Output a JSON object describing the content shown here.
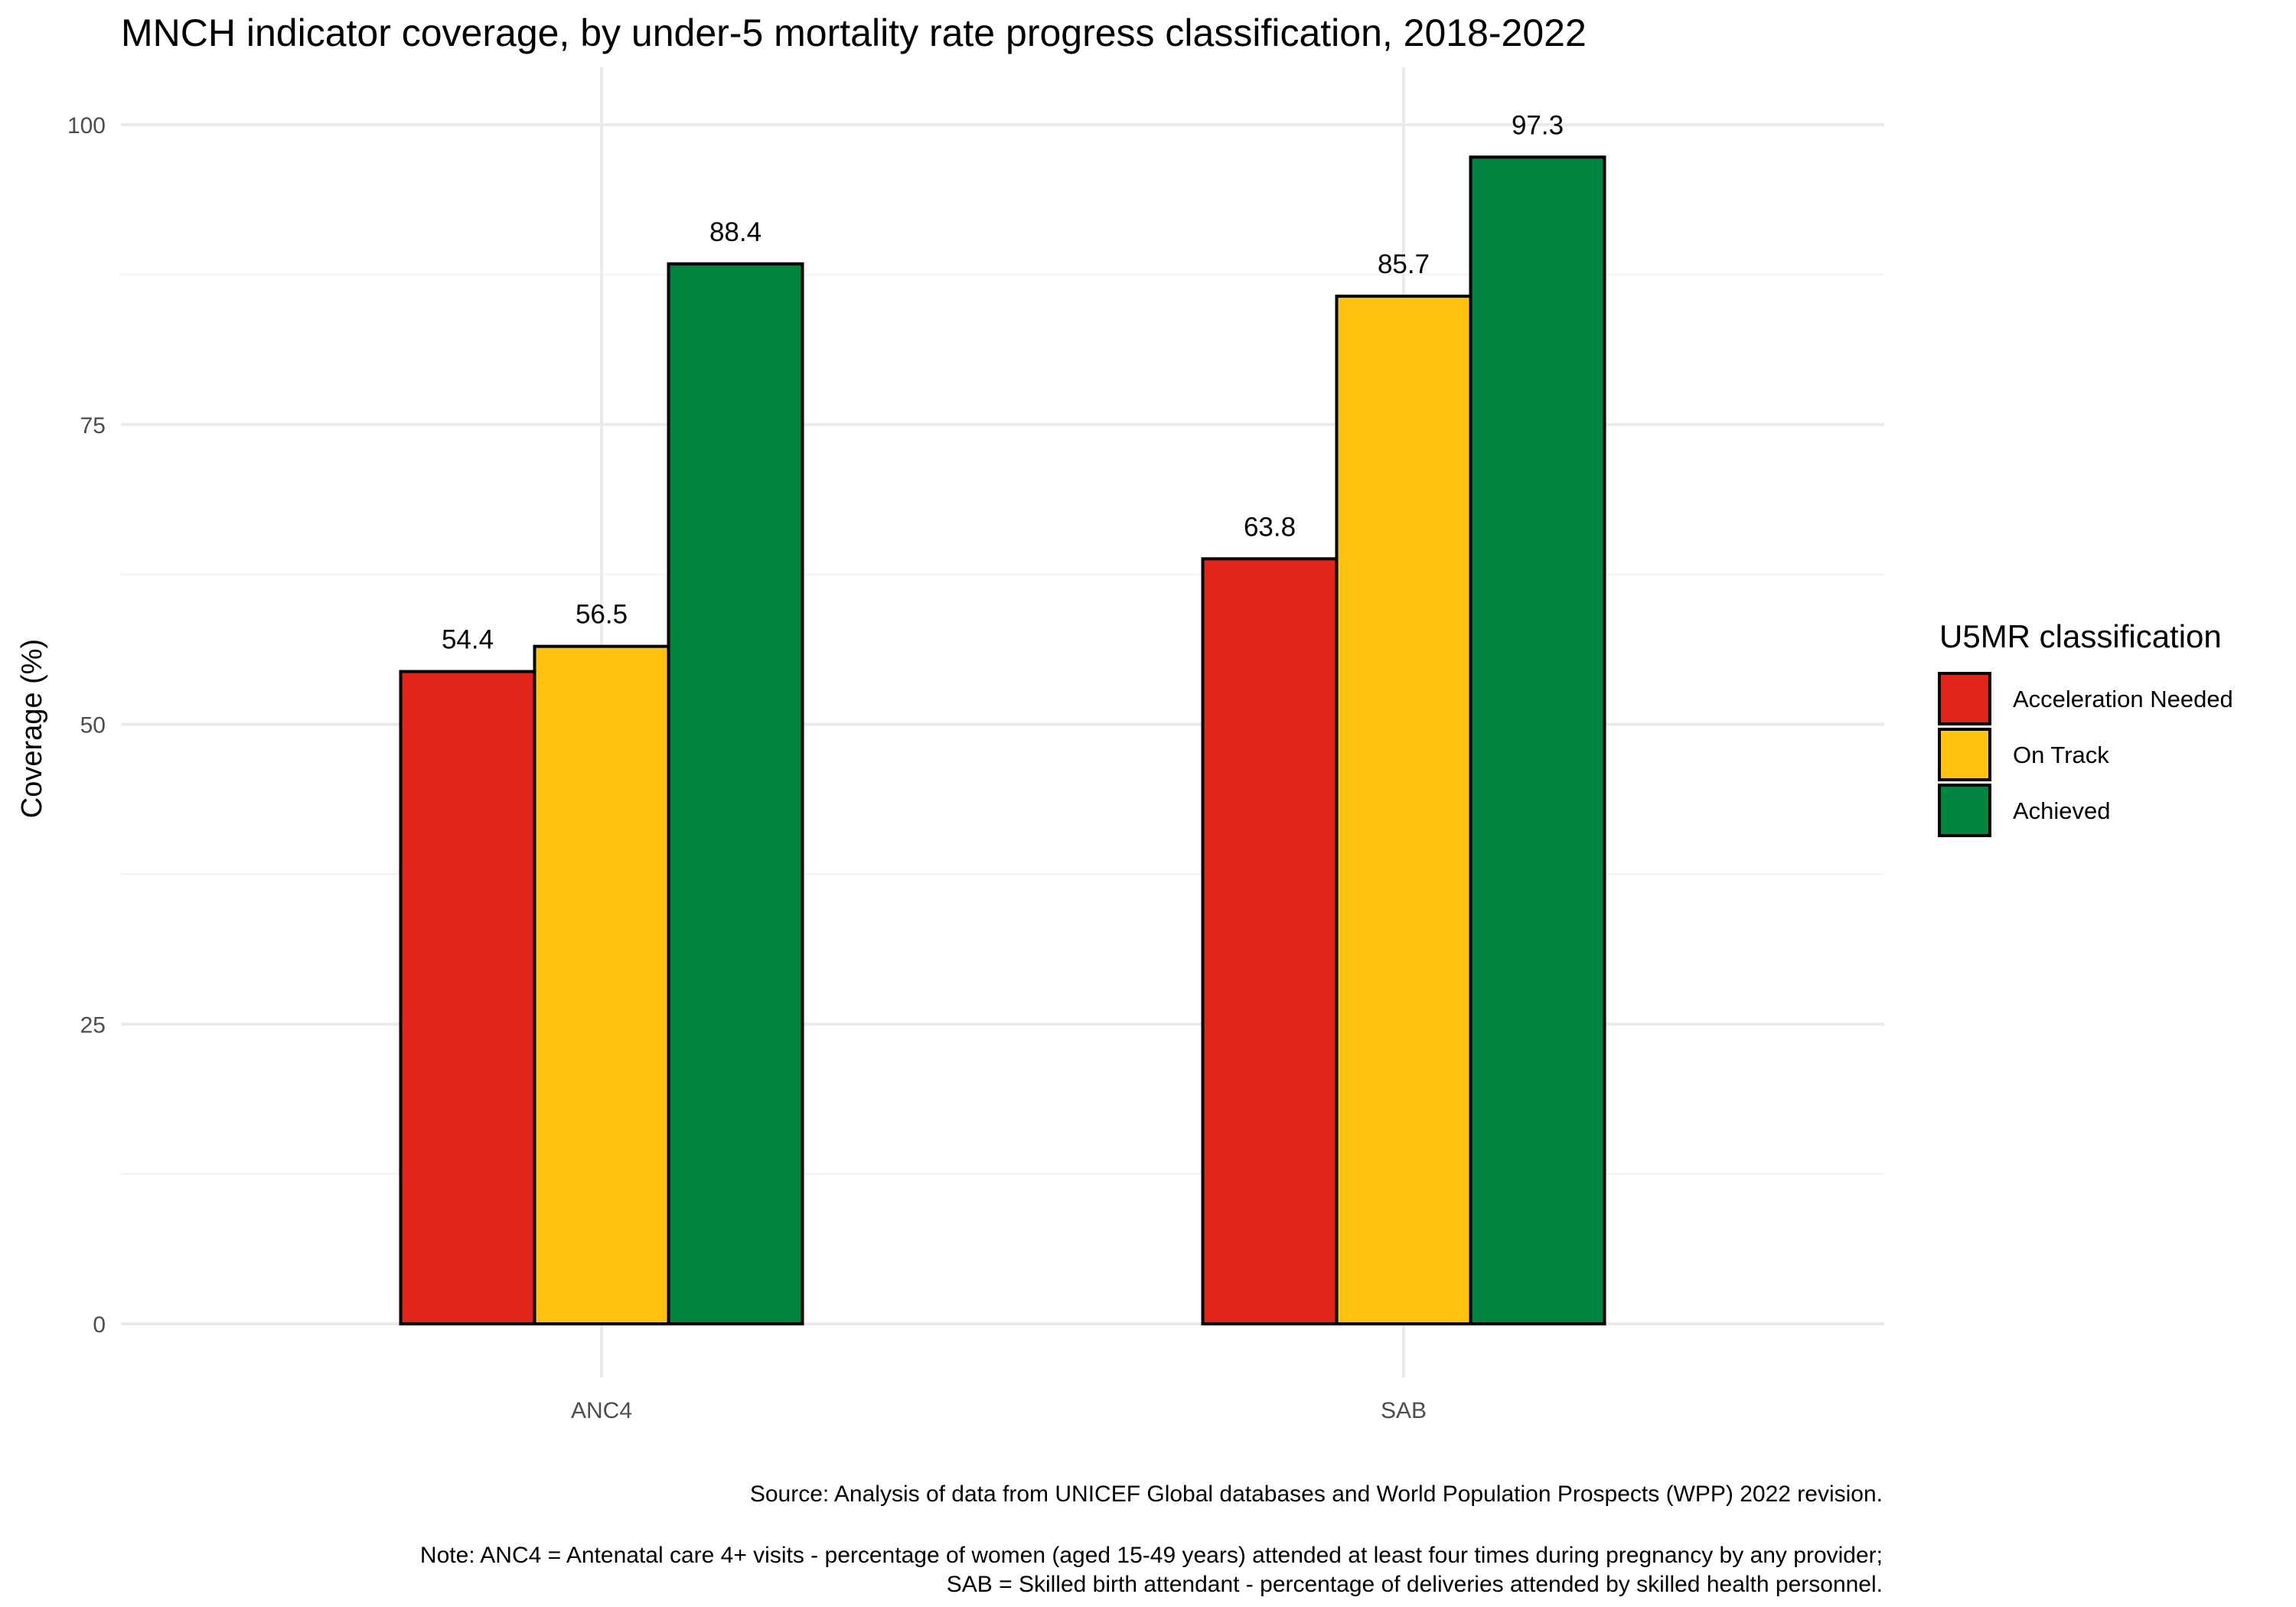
{
  "chart_data": {
    "type": "bar",
    "title": "MNCH indicator coverage, by under-5 mortality rate progress classification, 2018-2022",
    "xlabel": "",
    "ylabel": "Coverage (%)",
    "ylim": [
      0,
      100
    ],
    "y_ticks": [
      "0",
      "25",
      "50",
      "75",
      "100"
    ],
    "categories": [
      "ANC4",
      "SAB"
    ],
    "series": [
      {
        "name": "Acceleration Needed",
        "color": "#e1251b",
        "values": [
          54.4,
          63.8
        ],
        "labels": [
          "54.4",
          "63.8"
        ]
      },
      {
        "name": "On Track",
        "color": "#fec20f",
        "values": [
          56.5,
          85.7
        ],
        "labels": [
          "56.5",
          "85.7"
        ]
      },
      {
        "name": "Achieved",
        "color": "#008540",
        "values": [
          88.4,
          97.3
        ],
        "labels": [
          "88.4",
          "97.3"
        ]
      }
    ],
    "legend": {
      "title": "U5MR classification",
      "placement": "right"
    },
    "grid": true,
    "captions": [
      "Source: Analysis of data from UNICEF Global databases and World Population Prospects (WPP) 2022 revision.",
      "Note: ANC4 = Antenatal care 4+ visits - percentage of women (aged 15-49 years) attended at least four times during pregnancy by any provider;",
      "SAB = Skilled birth attendant - percentage of deliveries attended by skilled health personnel."
    ]
  }
}
